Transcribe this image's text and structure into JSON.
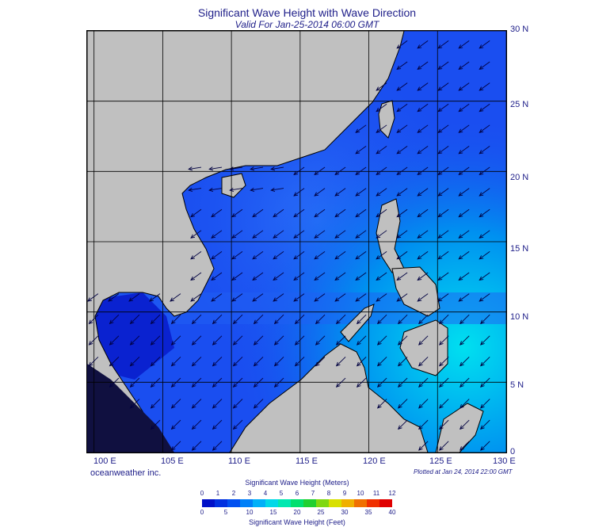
{
  "title": "Significant Wave Height with Wave Direction",
  "subtitle": "Valid For Jan-25-2014 06:00 GMT",
  "brand": "oceanweather inc.",
  "plotted": "Plotted at Jan 24, 2014 22:00 GMT",
  "lat_labels": [
    "30 N",
    "25 N",
    "20 N",
    "15 N",
    "10 N",
    "5 N",
    "0"
  ],
  "lon_labels": [
    "100 E",
    "105 E",
    "110 E",
    "115 E",
    "120 E",
    "125 E",
    "130 E"
  ],
  "colorbar": {
    "meters_title": "Significant Wave Height (Meters)",
    "feet_title": "Significant Wave Height (Feet)",
    "meters_ticks": [
      "0",
      "1",
      "2",
      "3",
      "4",
      "5",
      "6",
      "7",
      "8",
      "9",
      "10",
      "11",
      "12"
    ],
    "feet_ticks": [
      "0",
      "5",
      "10",
      "15",
      "20",
      "25",
      "30",
      "35",
      "40"
    ],
    "colors": [
      "#0010c8",
      "#0030e0",
      "#0050f0",
      "#0080f8",
      "#00b0f8",
      "#00d8e8",
      "#00e8b0",
      "#00e070",
      "#20d030",
      "#80d810",
      "#d8e000",
      "#f0b000",
      "#f07000",
      "#f03000",
      "#e00000"
    ]
  },
  "colors": {
    "land": "#c0c0c0",
    "sea_deep": "#0a2ae0",
    "sea_mid": "#1a50f0",
    "sea_light": "#00d0f0",
    "grid": "#000000",
    "arrow": "#000040"
  },
  "map": {
    "lon_range": [
      99.5,
      130
    ],
    "lat_range": [
      0,
      30
    ],
    "grid_lon": [
      100,
      105,
      110,
      115,
      120,
      125,
      130
    ],
    "grid_lat": [
      0,
      5,
      10,
      15,
      20,
      25,
      30
    ],
    "arrow_spacing_deg": 1.5,
    "arrow_direction": "south-west"
  }
}
